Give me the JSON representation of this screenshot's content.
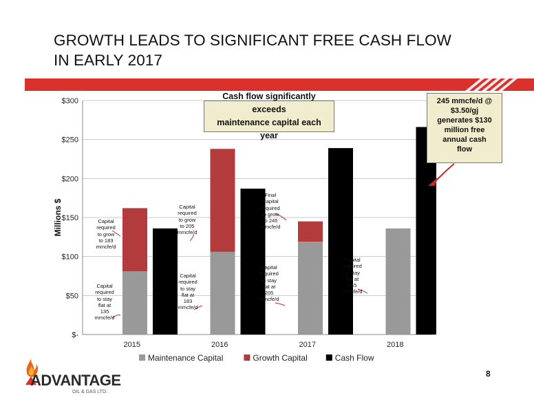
{
  "slide": {
    "title_line1": "GROWTH LEADS TO SIGNIFICANT FREE CASH FLOW",
    "title_line2": "IN EARLY 2017",
    "page_number": "8"
  },
  "callout": {
    "text_line1": "Cash flow significantly exceeds",
    "text_line2": "maintenance capital each year"
  },
  "side_note": {
    "lines": [
      "245 mmcfe/d @",
      "$3.50/gj",
      "generates $130",
      "million free",
      "annual cash",
      "flow"
    ]
  },
  "annotations": {
    "a2015_growth": [
      "Capital",
      "required",
      "to grow",
      "to 183",
      "mmcfe/d"
    ],
    "a2015_maint": [
      "Capital",
      "required",
      "to stay",
      "flat at",
      "135",
      "mmcfe/d"
    ],
    "a2016_growth": [
      "Capital",
      "required",
      "to grow",
      "to 205",
      "mmcfe/d"
    ],
    "a2016_maint": [
      "Capital",
      "required",
      "to stay",
      "flat at",
      "183",
      "mmcfe/d"
    ],
    "a2017_growth": [
      "Final",
      "Capital",
      "required",
      "to grow",
      "to 245",
      "mmcfe/d"
    ],
    "a2017_maint": [
      "Capital",
      "required",
      "to stay",
      "flat at",
      "205",
      "mmcfe/d"
    ],
    "a2018_maint": [
      "Capital",
      "required",
      "to stay",
      "flat at",
      "245",
      "mmcfe/d"
    ]
  },
  "logo": {
    "name": "ADVANTAGE",
    "sub": "OIL & GAS LTD."
  },
  "colors": {
    "maintenance": "#999999",
    "growth": "#b43b3b",
    "cashflow": "#000000",
    "band": "#d9312b",
    "callout_bg": "#f1eccd"
  },
  "chart_data": {
    "type": "bar",
    "stacked_plus_grouped": true,
    "categories": [
      "2015",
      "2016",
      "2017",
      "2018"
    ],
    "series": [
      {
        "name": "Maintenance Capital",
        "stack": "capital",
        "values": [
          81,
          106,
          119,
          136
        ]
      },
      {
        "name": "Growth Capital",
        "stack": "capital",
        "values": [
          81,
          132,
          26,
          0
        ]
      },
      {
        "name": "Cash Flow",
        "stack": "cash",
        "values": [
          136,
          187,
          239,
          266
        ]
      }
    ],
    "ylabel": "Millions $",
    "yticks": [
      "$-",
      "$50",
      "$100",
      "$150",
      "$200",
      "$250",
      "$300"
    ],
    "ylim": [
      0,
      300
    ],
    "grid": true,
    "legend_position": "bottom"
  }
}
